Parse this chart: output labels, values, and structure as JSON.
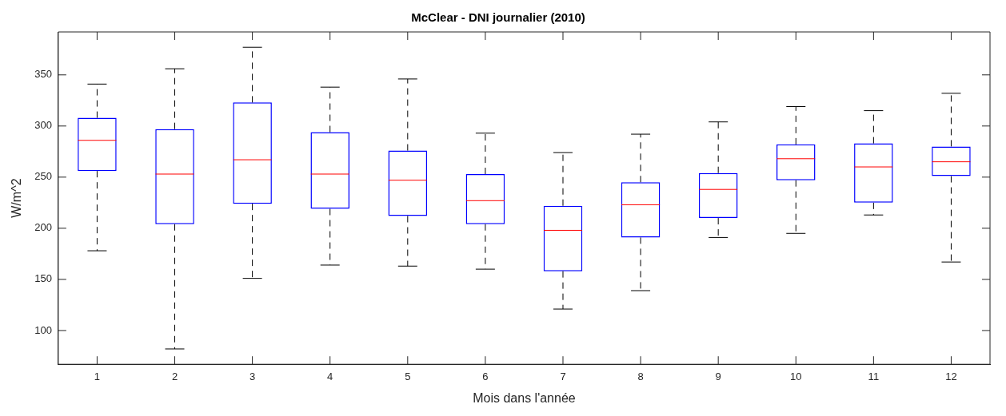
{
  "chart_data": {
    "type": "box",
    "title": "McClear - DNI journalier (2010)",
    "xlabel": "Mois dans l'année",
    "ylabel": "W/m^2",
    "categories": [
      "1",
      "2",
      "3",
      "4",
      "5",
      "6",
      "7",
      "8",
      "9",
      "10",
      "11",
      "12"
    ],
    "color": "#0000ff",
    "boxes": [
      {
        "low": 178,
        "q1": 256,
        "median": 286,
        "q3": 308,
        "high": 341
      },
      {
        "low": 82,
        "q1": 204,
        "median": 253,
        "q3": 297,
        "high": 356
      },
      {
        "low": 151,
        "q1": 224,
        "median": 267,
        "q3": 323,
        "high": 377
      },
      {
        "low": 164,
        "q1": 219,
        "median": 253,
        "q3": 294,
        "high": 338
      },
      {
        "low": 163,
        "q1": 212,
        "median": 247,
        "q3": 276,
        "high": 346
      },
      {
        "low": 160,
        "q1": 204,
        "median": 227,
        "q3": 253,
        "high": 293
      },
      {
        "low": 121,
        "q1": 158,
        "median": 198,
        "q3": 222,
        "high": 274
      },
      {
        "low": 139,
        "q1": 191,
        "median": 223,
        "q3": 245,
        "high": 292
      },
      {
        "low": 191,
        "q1": 210,
        "median": 238,
        "q3": 254,
        "high": 304
      },
      {
        "low": 195,
        "q1": 247,
        "median": 268,
        "q3": 282,
        "high": 319
      },
      {
        "low": 213,
        "q1": 225,
        "median": 260,
        "q3": 283,
        "high": 315
      },
      {
        "low": 167,
        "q1": 251,
        "median": 265,
        "q3": 280,
        "high": 332
      }
    ],
    "ylim": [
      67,
      392
    ],
    "yticks": [
      100,
      150,
      200,
      250,
      300,
      350
    ],
    "grid": false,
    "legend": false
  }
}
